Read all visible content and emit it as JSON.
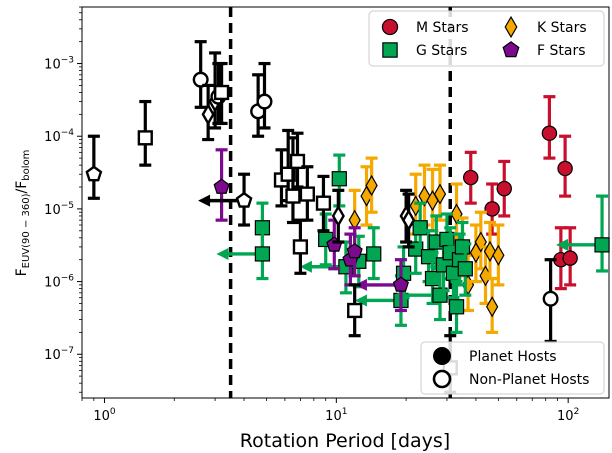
{
  "chart_data": {
    "type": "scatter",
    "xlabel": "Rotation Period [days]",
    "ylabel": "F_EUV(90-360)/F_bolom",
    "ylabel_main": "F",
    "ylabel_sub_main": "EUV(90 − 360)",
    "ylabel_sep": "/F",
    "ylabel_sub_den": "bolom",
    "x_scale": "log",
    "y_scale": "log",
    "xlim": [
      0.8,
      150
    ],
    "ylim": [
      2.5e-08,
      0.006
    ],
    "x_ticks": [
      {
        "value": 1,
        "base": "10",
        "exp": "0"
      },
      {
        "value": 10,
        "base": "10",
        "exp": "1"
      },
      {
        "value": 100,
        "base": "10",
        "exp": "2"
      }
    ],
    "y_ticks": [
      {
        "value": 1e-07,
        "base": "10",
        "exp": "−7"
      },
      {
        "value": 1e-06,
        "base": "10",
        "exp": "−6"
      },
      {
        "value": 1e-05,
        "base": "10",
        "exp": "−5"
      },
      {
        "value": 0.0001,
        "base": "10",
        "exp": "−4"
      },
      {
        "value": 0.001,
        "base": "10",
        "exp": "−3"
      }
    ],
    "vlines": [
      3.5,
      31
    ],
    "legend_types": [
      {
        "label": "M Stars",
        "marker": "circle",
        "color": "#c8102e"
      },
      {
        "label": "K Stars",
        "marker": "diamond",
        "color": "#f5a800"
      },
      {
        "label": "G Stars",
        "marker": "square",
        "color": "#00a651"
      },
      {
        "label": "F Stars",
        "marker": "pentagon",
        "color": "#7b0a8e"
      }
    ],
    "legend_hosts": [
      {
        "label": "Planet Hosts",
        "filled": true
      },
      {
        "label": "Non-Planet Hosts",
        "filled": false
      }
    ],
    "series": [
      {
        "name": "M Stars",
        "marker": "circle",
        "color": "#c8102e",
        "host": true,
        "points": [
          {
            "x": 38,
            "y": 2.7e-05,
            "lo": 1.2e-05,
            "hi": 6e-05
          },
          {
            "x": 47,
            "y": 1e-05,
            "lo": 4.5e-06,
            "hi": 2.2e-05
          },
          {
            "x": 53,
            "y": 1.9e-05,
            "lo": 8e-06,
            "hi": 4.5e-05
          },
          {
            "x": 83,
            "y": 0.00011,
            "lo": 5e-05,
            "hi": 0.00035
          },
          {
            "x": 93,
            "y": 2e-06,
            "lo": 8e-07,
            "hi": 5.5e-06
          },
          {
            "x": 97,
            "y": 3.6e-05,
            "lo": 1.5e-05,
            "hi": 0.0001
          },
          {
            "x": 102,
            "y": 2.1e-06,
            "lo": 9e-07,
            "hi": 5.5e-06
          }
        ]
      },
      {
        "name": "K Stars",
        "marker": "diamond",
        "color": "#f5a800",
        "host": true,
        "points": [
          {
            "x": 12,
            "y": 7e-06,
            "lo": 3e-06,
            "hi": 1.8e-05
          },
          {
            "x": 13.5,
            "y": 1.5e-05,
            "lo": 6e-06,
            "hi": 3.8e-05
          },
          {
            "x": 14.2,
            "y": 2.1e-05,
            "lo": 9e-06,
            "hi": 5e-05
          },
          {
            "x": 22,
            "y": 1.1e-05,
            "lo": 4.5e-06,
            "hi": 3e-05
          },
          {
            "x": 24,
            "y": 1.5e-05,
            "lo": 6e-06,
            "hi": 4e-05
          },
          {
            "x": 26,
            "y": 1.3e-05,
            "lo": 5e-06,
            "hi": 3.5e-05
          },
          {
            "x": 28,
            "y": 1.6e-05,
            "lo": 7e-06,
            "hi": 4e-05
          },
          {
            "x": 33,
            "y": 8.5e-06,
            "lo": 3.5e-06,
            "hi": 2.2e-05
          },
          {
            "x": 35,
            "y": 3e-06,
            "lo": 1.2e-06,
            "hi": 7.5e-06
          },
          {
            "x": 37,
            "y": 9e-07,
            "lo": 4e-07,
            "hi": 2.3e-06
          },
          {
            "x": 40,
            "y": 2.5e-06,
            "lo": 1e-06,
            "hi": 6e-06
          },
          {
            "x": 42,
            "y": 3.5e-06,
            "lo": 1.5e-06,
            "hi": 9e-06
          },
          {
            "x": 44,
            "y": 1.2e-06,
            "lo": 5e-07,
            "hi": 3e-06
          },
          {
            "x": 46,
            "y": 2.6e-06,
            "lo": 1.1e-06,
            "hi": 6.5e-06
          },
          {
            "x": 47,
            "y": 4.5e-07,
            "lo": 2e-07,
            "hi": 1.1e-06
          },
          {
            "x": 50,
            "y": 2.3e-06,
            "lo": 9e-07,
            "hi": 6e-06
          }
        ]
      },
      {
        "name": "G Stars",
        "marker": "square",
        "color": "#00a651",
        "host": true,
        "points": [
          {
            "x": 4.8,
            "y": 5.5e-06,
            "lo": 2.5e-06,
            "hi": 1.2e-05
          },
          {
            "x": 4.8,
            "y": 2.4e-06,
            "lo": 1.1e-06,
            "hi": 5.5e-06,
            "upper": true
          },
          {
            "x": 9.0,
            "y": 3.8e-06,
            "lo": 1.7e-06,
            "hi": 8.5e-06
          },
          {
            "x": 10.3,
            "y": 2.6e-05,
            "lo": 1.1e-05,
            "hi": 5.5e-05
          },
          {
            "x": 11,
            "y": 1.6e-06,
            "lo": 7e-07,
            "hi": 3.5e-06,
            "upper": true
          },
          {
            "x": 12.5,
            "y": 1.9e-06,
            "lo": 8.5e-07,
            "hi": 4.2e-06
          },
          {
            "x": 14.5,
            "y": 2.4e-06,
            "lo": 1.1e-06,
            "hi": 5.5e-06
          },
          {
            "x": 19,
            "y": 5.5e-07,
            "lo": 2.5e-07,
            "hi": 1.2e-06,
            "upper": true
          },
          {
            "x": 19.5,
            "y": 1.3e-06,
            "lo": 6e-07,
            "hi": 3e-06
          },
          {
            "x": 22,
            "y": 2.8e-06,
            "lo": 1.3e-06,
            "hi": 6.2e-06
          },
          {
            "x": 23,
            "y": 5.5e-06,
            "lo": 2.5e-06,
            "hi": 1.2e-05
          },
          {
            "x": 25,
            "y": 2.2e-06,
            "lo": 1e-06,
            "hi": 5e-06
          },
          {
            "x": 26,
            "y": 1.1e-06,
            "lo": 5e-07,
            "hi": 2.5e-06
          },
          {
            "x": 27,
            "y": 3.5e-06,
            "lo": 1.6e-06,
            "hi": 8e-06
          },
          {
            "x": 28,
            "y": 6.5e-07,
            "lo": 3e-07,
            "hi": 1.5e-06,
            "upper": true
          },
          {
            "x": 29,
            "y": 1.7e-06,
            "lo": 7.5e-07,
            "hi": 3.8e-06
          },
          {
            "x": 30,
            "y": 3.8e-06,
            "lo": 1.7e-06,
            "hi": 8.5e-06
          },
          {
            "x": 31,
            "y": 2.5e-06,
            "lo": 1.1e-06,
            "hi": 5.5e-06
          },
          {
            "x": 32,
            "y": 1.3e-06,
            "lo": 6e-07,
            "hi": 3e-06
          },
          {
            "x": 33,
            "y": 4.5e-07,
            "lo": 2e-07,
            "hi": 1e-06
          },
          {
            "x": 34,
            "y": 2e-06,
            "lo": 9e-07,
            "hi": 4.5e-06
          },
          {
            "x": 35,
            "y": 3e-06,
            "lo": 1.3e-06,
            "hi": 6.5e-06
          },
          {
            "x": 36,
            "y": 1.5e-06,
            "lo": 6.5e-07,
            "hi": 3.3e-06
          },
          {
            "x": 140,
            "y": 3.2e-06,
            "lo": 1.4e-06,
            "hi": 1.5e-05,
            "upper": true
          }
        ]
      },
      {
        "name": "F Stars",
        "marker": "pentagon",
        "color": "#7b0a8e",
        "host": true,
        "points": [
          {
            "x": 3.2,
            "y": 2e-05,
            "lo": 7e-06,
            "hi": 6.5e-05
          },
          {
            "x": 9.8,
            "y": 3.2e-06,
            "lo": 1.5e-06,
            "hi": 7e-06
          },
          {
            "x": 11.5,
            "y": 2e-06,
            "lo": 9e-07,
            "hi": 4.5e-06
          },
          {
            "x": 12,
            "y": 2.6e-06,
            "lo": 1.2e-06,
            "hi": 5.5e-06
          },
          {
            "x": 19,
            "y": 9e-07,
            "lo": 4e-07,
            "hi": 2e-06,
            "upper": true
          }
        ]
      },
      {
        "name": "Non-Planet Hosts",
        "marker": "mixed",
        "color": "#000000",
        "host": false,
        "points": [
          {
            "x": 0.9,
            "y": 3e-05,
            "lo": 1.4e-05,
            "hi": 0.0001,
            "m": "pentagon"
          },
          {
            "x": 1.5,
            "y": 9.5e-05,
            "lo": 4e-05,
            "hi": 0.0003,
            "m": "square"
          },
          {
            "x": 2.6,
            "y": 0.0006,
            "lo": 0.00025,
            "hi": 0.002,
            "m": "circle"
          },
          {
            "x": 2.8,
            "y": 0.0002,
            "lo": 9e-05,
            "hi": 0.0005,
            "m": "diamond"
          },
          {
            "x": 3.0,
            "y": 0.0003,
            "lo": 0.00013,
            "hi": 0.0014,
            "m": "diamond"
          },
          {
            "x": 3.1,
            "y": 0.00035,
            "lo": 0.00015,
            "hi": 0.001,
            "m": "circle"
          },
          {
            "x": 3.2,
            "y": 0.0004,
            "lo": 0.00015,
            "hi": 0.001,
            "m": "square"
          },
          {
            "x": 4.0,
            "y": 1.3e-05,
            "lo": 6e-06,
            "hi": 3e-05,
            "m": "pentagon",
            "upper": true
          },
          {
            "x": 4.6,
            "y": 0.00022,
            "lo": 0.0001,
            "hi": 0.0007,
            "m": "circle"
          },
          {
            "x": 4.9,
            "y": 0.0003,
            "lo": 0.00013,
            "hi": 0.001,
            "m": "circle"
          },
          {
            "x": 5.8,
            "y": 2.5e-05,
            "lo": 1.1e-05,
            "hi": 6.5e-05,
            "m": "square"
          },
          {
            "x": 6.2,
            "y": 3e-05,
            "lo": 1.3e-05,
            "hi": 0.00012,
            "m": "square"
          },
          {
            "x": 6.5,
            "y": 1.5e-05,
            "lo": 6.5e-06,
            "hi": 9.5e-05,
            "m": "square"
          },
          {
            "x": 6.8,
            "y": 4.5e-05,
            "lo": 2e-05,
            "hi": 0.00011,
            "m": "square"
          },
          {
            "x": 7.0,
            "y": 3e-06,
            "lo": 1.3e-06,
            "hi": 7e-06,
            "m": "square"
          },
          {
            "x": 7.5,
            "y": 1.6e-05,
            "lo": 7e-06,
            "hi": 3.8e-05,
            "m": "square"
          },
          {
            "x": 8.8,
            "y": 1.2e-05,
            "lo": 5e-06,
            "hi": 2.8e-05,
            "m": "square"
          },
          {
            "x": 10.2,
            "y": 8e-06,
            "lo": 3.5e-06,
            "hi": 1.8e-05,
            "m": "diamond"
          },
          {
            "x": 12,
            "y": 4e-07,
            "lo": 1.8e-07,
            "hi": 9e-07,
            "m": "square"
          },
          {
            "x": 20,
            "y": 8e-06,
            "lo": 3.5e-06,
            "hi": 1.8e-05,
            "m": "diamond"
          },
          {
            "x": 20.5,
            "y": 7e-06,
            "lo": 3e-06,
            "hi": 1.6e-05,
            "m": "diamond"
          },
          {
            "x": 31,
            "y": 6.5e-08,
            "lo": 3e-08,
            "hi": 1.8e-07,
            "m": "square"
          },
          {
            "x": 84,
            "y": 5.8e-07,
            "lo": 1.5e-07,
            "hi": 2e-06,
            "m": "circle"
          }
        ]
      }
    ]
  }
}
